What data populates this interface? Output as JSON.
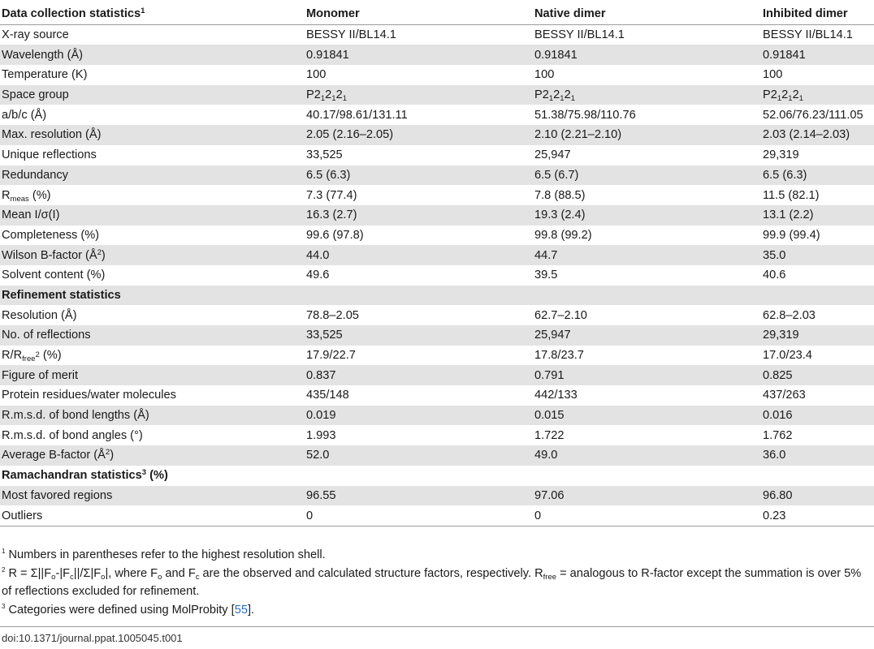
{
  "table": {
    "header": {
      "label": "Data collection statistics",
      "label_mark": "1",
      "columns": [
        "Monomer",
        "Native dimer",
        "Inhibited dimer"
      ]
    },
    "rows": [
      {
        "label": "X-ray source",
        "values": [
          "BESSY II/BL14.1",
          "BESSY II/BL14.1",
          "BESSY II/BL14.1"
        ]
      },
      {
        "label": "Wavelength (Å)",
        "values": [
          "0.91841",
          "0.91841",
          "0.91841"
        ]
      },
      {
        "label": "Temperature (K)",
        "values": [
          "100",
          "100",
          "100"
        ]
      },
      {
        "label": "Space group",
        "values": [
          "P212121",
          "P212121",
          "P212121"
        ]
      },
      {
        "label": "a/b/c (Å)",
        "values": [
          "40.17/98.61/131.11",
          "51.38/75.98/110.76",
          "52.06/76.23/111.05"
        ]
      },
      {
        "label": "Max. resolution (Å)",
        "values": [
          "2.05 (2.16–2.05)",
          "2.10 (2.21–2.10)",
          "2.03 (2.14–2.03)"
        ]
      },
      {
        "label": "Unique reflections",
        "values": [
          "33,525",
          "25,947",
          "29,319"
        ]
      },
      {
        "label": "Redundancy",
        "values": [
          "6.5 (6.3)",
          "6.5 (6.7)",
          "6.5 (6.3)"
        ]
      },
      {
        "label": "Rmeas (%)",
        "values": [
          "7.3 (77.4)",
          "7.8 (88.5)",
          "11.5 (82.1)"
        ]
      },
      {
        "label": "Mean I/σ(I)",
        "values": [
          "16.3 (2.7)",
          "19.3 (2.4)",
          "13.1 (2.2)"
        ]
      },
      {
        "label": "Completeness (%)",
        "values": [
          "99.6 (97.8)",
          "99.8 (99.2)",
          "99.9 (99.4)"
        ]
      },
      {
        "label": "Wilson B-factor (Å2)",
        "values": [
          "44.0",
          "44.7",
          "35.0"
        ]
      },
      {
        "label": "Solvent content (%)",
        "values": [
          "49.6",
          "39.5",
          "40.6"
        ]
      },
      {
        "label": "Refinement statistics",
        "section": true
      },
      {
        "label": "Resolution (Å)",
        "values": [
          "78.8–2.05",
          "62.7–2.10",
          "62.8–2.03"
        ]
      },
      {
        "label": "No. of reflections",
        "values": [
          "33,525",
          "25,947",
          "29,319"
        ]
      },
      {
        "label": "R/Rfree2 (%)",
        "values": [
          "17.9/22.7",
          "17.8/23.7",
          "17.0/23.4"
        ]
      },
      {
        "label": "Figure of merit",
        "values": [
          "0.837",
          "0.791",
          "0.825"
        ]
      },
      {
        "label": "Protein residues/water molecules",
        "values": [
          "435/148",
          "442/133",
          "437/263"
        ]
      },
      {
        "label": "R.m.s.d. of bond lengths (Å)",
        "values": [
          "0.019",
          "0.015",
          "0.016"
        ]
      },
      {
        "label": "R.m.s.d. of bond angles (°)",
        "values": [
          "1.993",
          "1.722",
          "1.762"
        ]
      },
      {
        "label": "Average B-factor (Å2)",
        "values": [
          "52.0",
          "49.0",
          "36.0"
        ]
      },
      {
        "label": "Ramachandran statistics3 (%)",
        "section": true
      },
      {
        "label": "Most favored regions",
        "values": [
          "96.55",
          "97.06",
          "96.80"
        ]
      },
      {
        "label": "Outliers",
        "values": [
          "0",
          "0",
          "0.23"
        ]
      }
    ]
  },
  "footnotes": [
    {
      "mark": "1",
      "text": "Numbers in parentheses refer to the highest resolution shell."
    },
    {
      "mark": "2",
      "text": "R = Σ||Fo-|Fc||/Σ|Fo|, where Fo and Fc are the observed and calculated structure factors, respectively. Rfree = analogous to R-factor except the summation is over 5% of reflections excluded for refinement."
    },
    {
      "mark": "3",
      "text_before": "Categories were defined using MolProbity [",
      "ref": "55",
      "text_after": "]."
    }
  ],
  "doi": "doi:10.1371/journal.ppat.1005045.t001"
}
